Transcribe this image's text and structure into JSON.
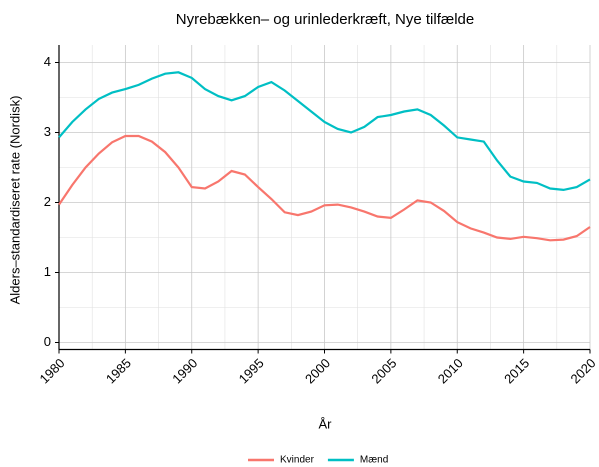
{
  "chart_data": {
    "type": "line",
    "title": "Nyrebækken– og urinlederkræft, Nye tilfælde",
    "xlabel": "År",
    "ylabel": "Alders–standardiseret rate (Nordisk)",
    "x": [
      1980,
      1981,
      1982,
      1983,
      1984,
      1985,
      1986,
      1987,
      1988,
      1989,
      1990,
      1991,
      1992,
      1993,
      1994,
      1995,
      1996,
      1997,
      1998,
      1999,
      2000,
      2001,
      2002,
      2003,
      2004,
      2005,
      2006,
      2007,
      2008,
      2009,
      2010,
      2011,
      2012,
      2013,
      2014,
      2015,
      2016,
      2017,
      2018,
      2019,
      2020
    ],
    "series": [
      {
        "name": "Kvinder",
        "color": "#f8766d",
        "values": [
          1.97,
          2.25,
          2.5,
          2.7,
          2.86,
          2.95,
          2.95,
          2.87,
          2.72,
          2.5,
          2.22,
          2.2,
          2.3,
          2.45,
          2.4,
          2.22,
          2.05,
          1.86,
          1.82,
          1.87,
          1.96,
          1.97,
          1.93,
          1.87,
          1.8,
          1.78,
          1.9,
          2.03,
          2.0,
          1.88,
          1.72,
          1.63,
          1.57,
          1.5,
          1.48,
          1.51,
          1.49,
          1.46,
          1.47,
          1.52,
          1.65
        ]
      },
      {
        "name": "Mænd",
        "color": "#00bfc4",
        "values": [
          2.93,
          3.15,
          3.33,
          3.48,
          3.57,
          3.62,
          3.68,
          3.77,
          3.84,
          3.86,
          3.78,
          3.62,
          3.52,
          3.46,
          3.52,
          3.65,
          3.72,
          3.6,
          3.45,
          3.3,
          3.15,
          3.05,
          3.0,
          3.08,
          3.22,
          3.25,
          3.3,
          3.33,
          3.25,
          3.1,
          2.93,
          2.9,
          2.87,
          2.6,
          2.37,
          2.3,
          2.28,
          2.2,
          2.18,
          2.22,
          2.33
        ]
      }
    ],
    "xlim": [
      1980,
      2020
    ],
    "xticks": [
      1980,
      1985,
      1990,
      1995,
      2000,
      2005,
      2010,
      2015,
      2020
    ],
    "ylim": [
      -0.1,
      4.25
    ],
    "yticks": [
      0,
      1,
      2,
      3,
      4
    ],
    "grid": true,
    "legend": "bottom"
  }
}
